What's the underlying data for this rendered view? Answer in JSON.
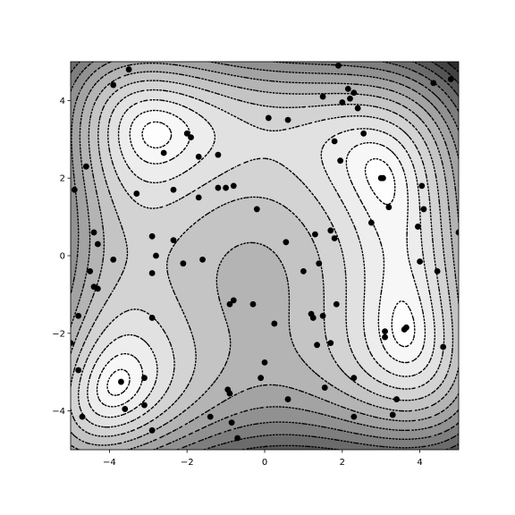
{
  "chart_data": {
    "type": "scatter",
    "subtype": "filled contour with dotted contour lines and scatter overlay",
    "title": "",
    "xlabel": "",
    "ylabel": "",
    "xlim": [
      -5,
      5
    ],
    "ylim": [
      -5,
      5
    ],
    "x_ticks": [
      -4,
      -2,
      0,
      2,
      4
    ],
    "y_ticks": [
      -4,
      -2,
      0,
      2,
      4
    ],
    "x_tick_labels": [
      "−4",
      "−2",
      "0",
      "2",
      "4"
    ],
    "y_tick_labels": [
      "−4",
      "−2",
      "0",
      "2",
      "4"
    ],
    "grid": false,
    "legend": "none",
    "colormap": "gray (dark = high value, light = low value)",
    "contour_line_style": "dotted black",
    "surface": "Himmelblau-like function with four minima near (3, 2), (-2.8, 3.1), (-3.8, -3.3), (3.6, -1.8)",
    "marker_color": "#000000",
    "points": [
      [
        -3.5,
        4.8
      ],
      [
        -3.9,
        4.4
      ],
      [
        -4.6,
        2.3
      ],
      [
        -4.9,
        1.7
      ],
      [
        -3.3,
        1.6
      ],
      [
        -4.4,
        0.6
      ],
      [
        -4.3,
        0.3
      ],
      [
        -3.9,
        -0.1
      ],
      [
        -4.5,
        -0.4
      ],
      [
        -4.4,
        -0.8
      ],
      [
        -4.3,
        -0.85
      ],
      [
        -4.8,
        -1.55
      ],
      [
        -5.0,
        -2.25
      ],
      [
        -4.8,
        -2.95
      ],
      [
        -4.7,
        -4.15
      ],
      [
        -3.7,
        -3.25
      ],
      [
        -3.6,
        -3.95
      ],
      [
        -3.1,
        -3.15
      ],
      [
        -3.1,
        -3.85
      ],
      [
        -2.9,
        -4.5
      ],
      [
        -2.9,
        0.5
      ],
      [
        -2.8,
        0.0
      ],
      [
        -2.9,
        -0.45
      ],
      [
        -2.35,
        0.4
      ],
      [
        -2.1,
        -0.2
      ],
      [
        -2.9,
        -1.6
      ],
      [
        -2.6,
        2.65
      ],
      [
        -2.0,
        3.15
      ],
      [
        -1.9,
        3.05
      ],
      [
        -1.7,
        2.55
      ],
      [
        -1.2,
        2.6
      ],
      [
        -2.35,
        1.7
      ],
      [
        -1.7,
        1.5
      ],
      [
        -1.2,
        1.75
      ],
      [
        -1.0,
        1.75
      ],
      [
        -0.8,
        1.8
      ],
      [
        -1.6,
        -0.1
      ],
      [
        -0.8,
        -1.15
      ],
      [
        -0.9,
        -1.25
      ],
      [
        -0.3,
        -1.25
      ],
      [
        -1.4,
        -4.15
      ],
      [
        -0.95,
        -3.45
      ],
      [
        -0.9,
        -3.55
      ],
      [
        -0.85,
        -4.3
      ],
      [
        -0.7,
        -4.7
      ],
      [
        -0.2,
        1.2
      ],
      [
        0.1,
        3.55
      ],
      [
        0.6,
        3.5
      ],
      [
        0.55,
        0.35
      ],
      [
        0.25,
        -1.75
      ],
      [
        0.0,
        -2.75
      ],
      [
        -0.1,
        -3.15
      ],
      [
        0.6,
        -3.7
      ],
      [
        1.0,
        -0.4
      ],
      [
        1.2,
        -1.5
      ],
      [
        1.25,
        -1.6
      ],
      [
        1.3,
        0.55
      ],
      [
        1.4,
        -0.2
      ],
      [
        1.35,
        -2.3
      ],
      [
        1.5,
        -1.55
      ],
      [
        1.55,
        -3.4
      ],
      [
        1.5,
        4.1
      ],
      [
        1.7,
        0.65
      ],
      [
        1.7,
        -2.25
      ],
      [
        1.8,
        0.45
      ],
      [
        1.85,
        -1.25
      ],
      [
        1.8,
        2.95
      ],
      [
        1.9,
        4.9
      ],
      [
        1.95,
        2.45
      ],
      [
        2.0,
        3.95
      ],
      [
        2.15,
        4.3
      ],
      [
        2.2,
        4.05
      ],
      [
        2.3,
        4.2
      ],
      [
        2.4,
        3.8
      ],
      [
        2.55,
        3.15
      ],
      [
        2.3,
        -3.15
      ],
      [
        2.3,
        -4.15
      ],
      [
        2.75,
        0.85
      ],
      [
        3.0,
        2.0
      ],
      [
        3.05,
        2.0
      ],
      [
        3.2,
        1.25
      ],
      [
        3.1,
        -1.95
      ],
      [
        3.1,
        -2.1
      ],
      [
        3.3,
        -4.1
      ],
      [
        3.4,
        -3.7
      ],
      [
        3.6,
        -1.9
      ],
      [
        3.65,
        -1.85
      ],
      [
        3.95,
        0.75
      ],
      [
        4.0,
        -0.15
      ],
      [
        4.05,
        1.8
      ],
      [
        4.1,
        1.2
      ],
      [
        4.35,
        4.45
      ],
      [
        4.45,
        -0.4
      ],
      [
        4.6,
        -2.35
      ],
      [
        4.8,
        4.55
      ],
      [
        5.0,
        0.6
      ]
    ]
  }
}
